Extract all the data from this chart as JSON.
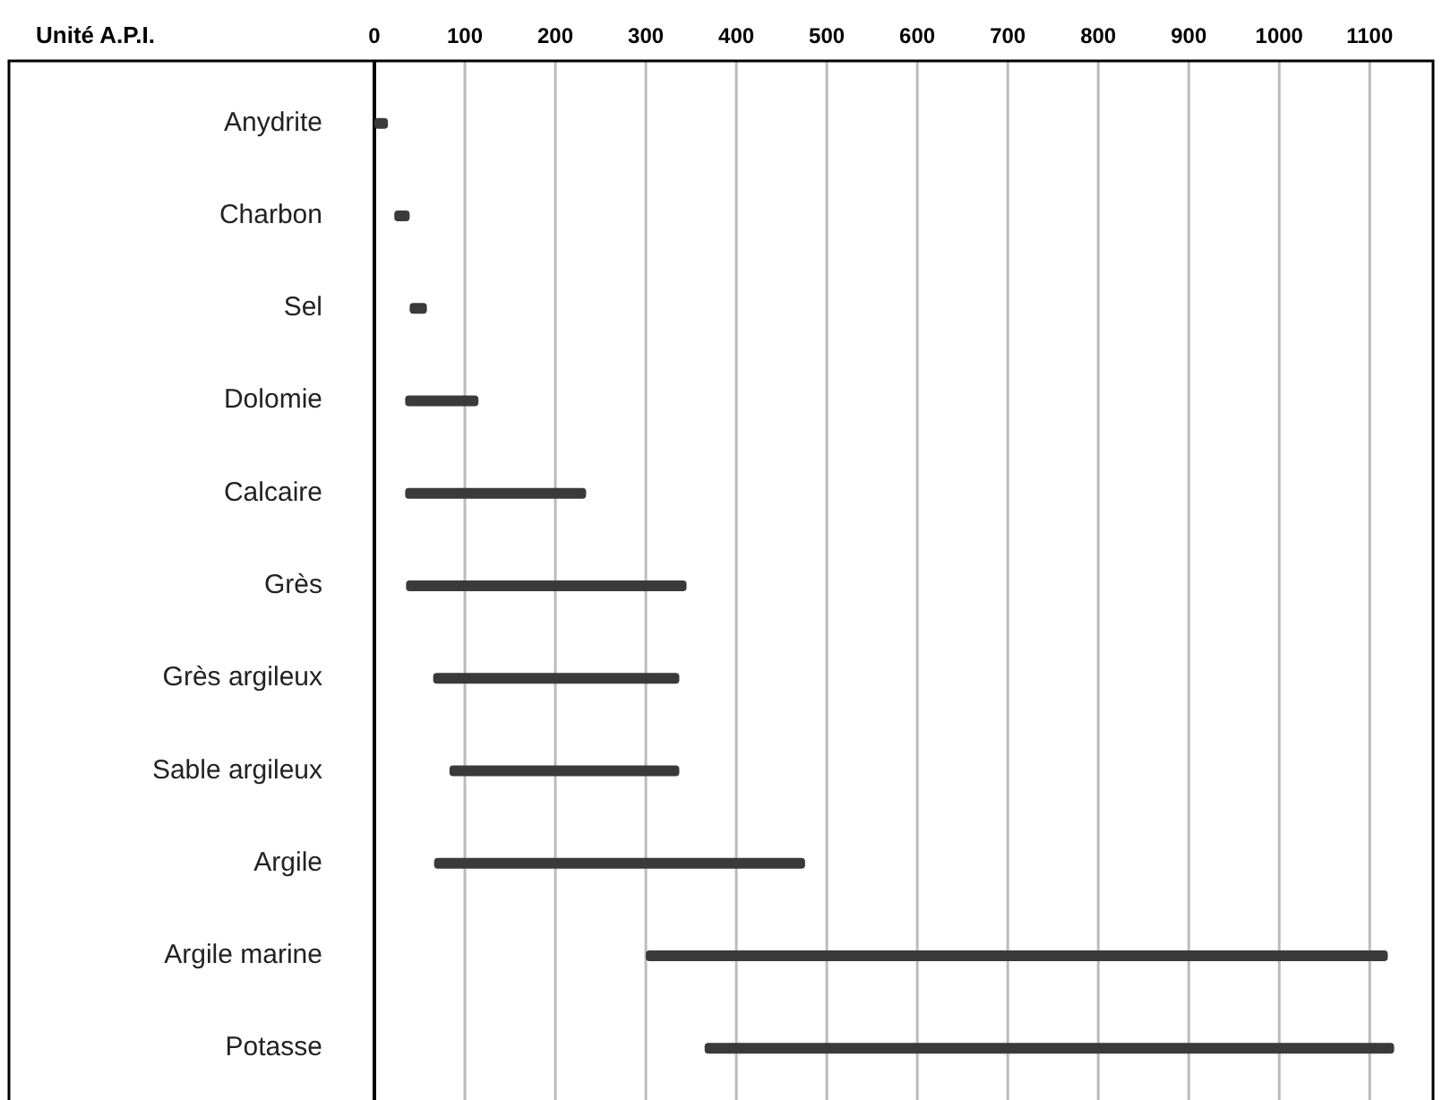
{
  "chart_data": {
    "type": "bar",
    "orientation": "horizontal",
    "xlabel": "Unité A.P.I.",
    "categories": [
      "Anydrite",
      "Charbon",
      "Sel",
      "Dolomie",
      "Calcaire",
      "Grès",
      "Grès argileux",
      "Sable argileux",
      "Argile",
      "Argile marine",
      "Potasse"
    ],
    "base": [
      0,
      22,
      39,
      34,
      34,
      35,
      65,
      83,
      66,
      300,
      365
    ],
    "values": [
      15,
      17,
      19,
      81,
      200,
      310,
      272,
      254,
      410,
      820,
      762
    ],
    "color": "#3a3a3a",
    "xlim": [
      0,
      1170
    ],
    "xticks": [
      0,
      100,
      200,
      300,
      400,
      500,
      600,
      700,
      800,
      900,
      1000,
      1100
    ],
    "grid": "x"
  }
}
